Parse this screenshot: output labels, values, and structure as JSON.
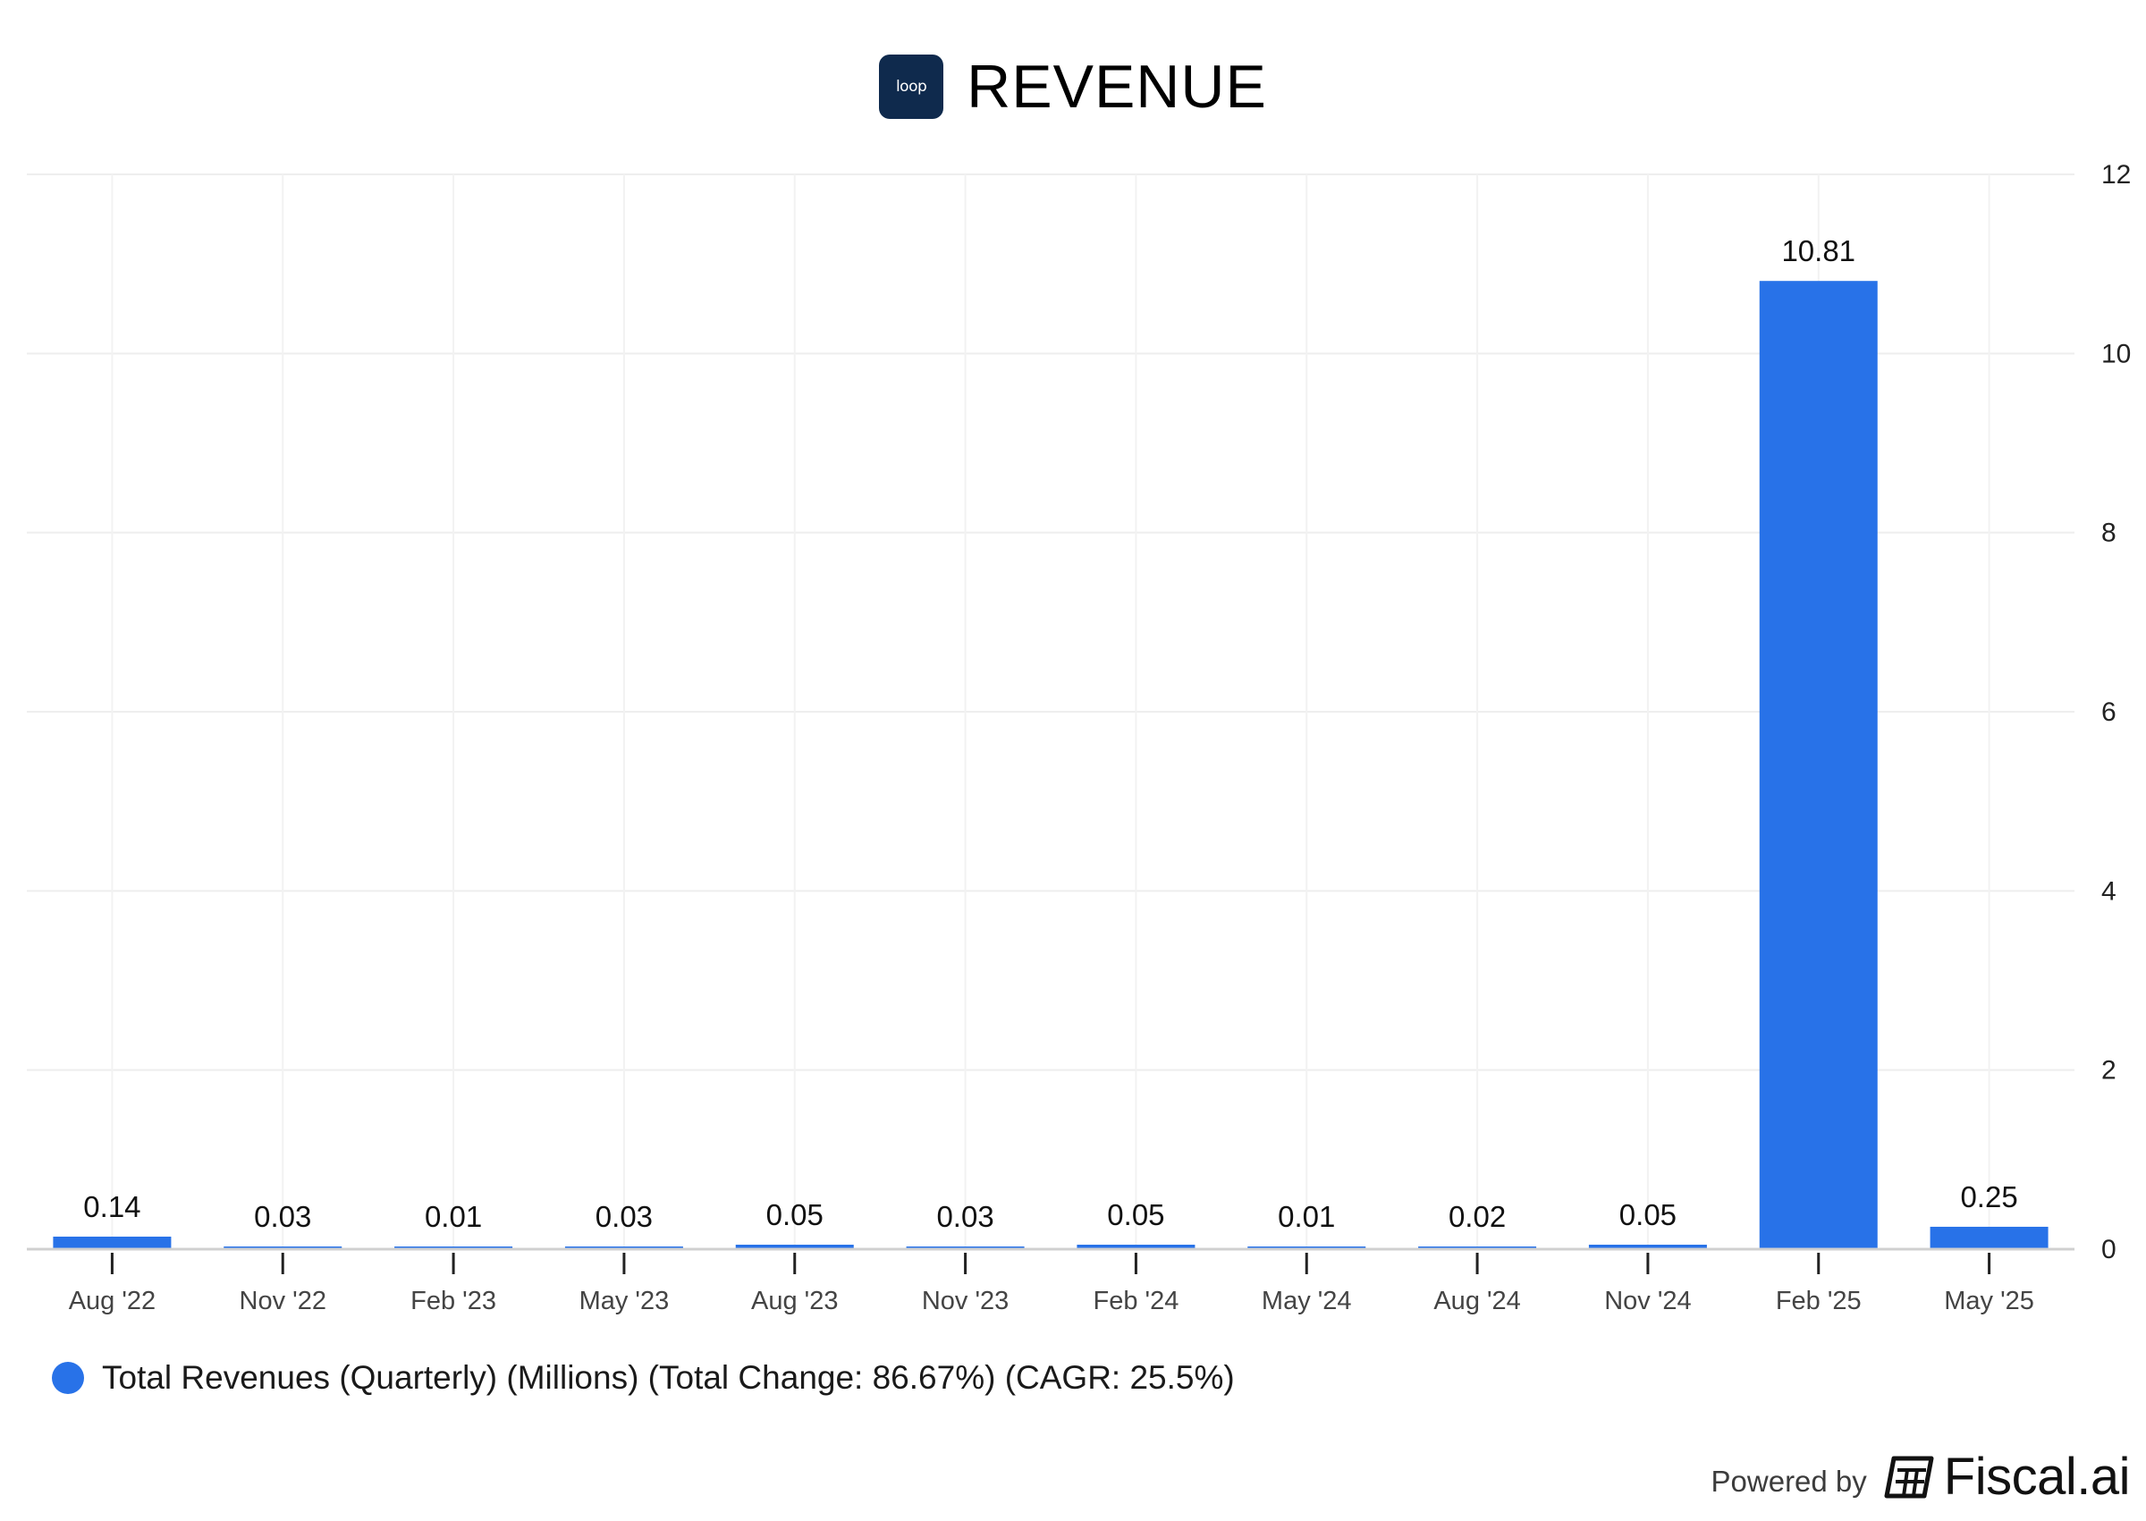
{
  "header": {
    "logo_text": "loop",
    "title": "REVENUE"
  },
  "chart_data": {
    "type": "bar",
    "title": "REVENUE",
    "categories": [
      "Aug '22",
      "Nov '22",
      "Feb '23",
      "May '23",
      "Aug '23",
      "Nov '23",
      "Feb '24",
      "May '24",
      "Aug '24",
      "Nov '24",
      "Feb '25",
      "May '25"
    ],
    "values": [
      0.14,
      0.03,
      0.01,
      0.03,
      0.05,
      0.03,
      0.05,
      0.01,
      0.02,
      0.05,
      10.81,
      0.25
    ],
    "value_labels": [
      "0.14",
      "0.03",
      "0.01",
      "0.03",
      "0.05",
      "0.03",
      "0.05",
      "0.01",
      "0.02",
      "0.05",
      "10.81",
      "0.25"
    ],
    "ylim": [
      0,
      12
    ],
    "yticks": [
      0,
      2,
      4,
      6,
      8,
      10,
      12
    ],
    "y_axis_side": "right",
    "grid": true,
    "xlabel": "",
    "ylabel": "",
    "bar_color": "#2872e8",
    "legend_position": "bottom-left"
  },
  "legend": {
    "label": "Total Revenues (Quarterly) (Millions) (Total Change: 86.67%) (CAGR: 25.5%)",
    "color": "#2872e8"
  },
  "footer": {
    "powered_by": "Powered by",
    "brand": "Fiscal.ai"
  }
}
